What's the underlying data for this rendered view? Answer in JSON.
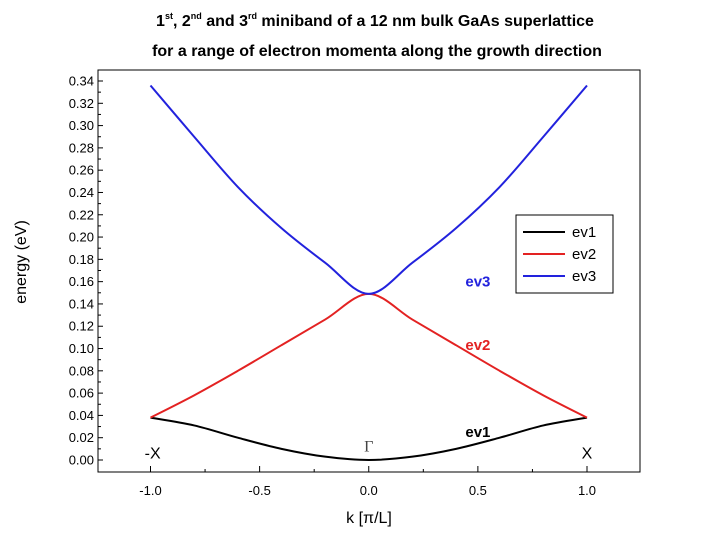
{
  "chart_data": {
    "type": "line",
    "title_line1": {
      "parts": [
        {
          "text": "1",
          "sup": false
        },
        {
          "text": "st",
          "sup": true
        },
        {
          "text": ", 2",
          "sup": false
        },
        {
          "text": "nd",
          "sup": true
        },
        {
          "text": " and 3",
          "sup": false
        },
        {
          "text": "rd",
          "sup": true
        },
        {
          "text": " miniband of a 12 nm bulk GaAs superlattice",
          "sup": false
        }
      ]
    },
    "title_line2": "for a range of electron momenta along the growth direction",
    "xlabel": "k  [π/L]",
    "ylabel": "energy (eV)",
    "xlim": [
      -1.2,
      1.2
    ],
    "ylim": [
      -0.01,
      0.345
    ],
    "x_ticks": [
      -1.0,
      -0.5,
      0.0,
      0.5,
      1.0
    ],
    "x_tick_labels": [
      "-1.0",
      "-0.5",
      "0.0",
      "0.5",
      "1.0"
    ],
    "y_ticks": [
      0.0,
      0.02,
      0.04,
      0.06,
      0.08,
      0.1,
      0.12,
      0.14,
      0.16,
      0.18,
      0.2,
      0.22,
      0.24,
      0.26,
      0.28,
      0.3,
      0.32,
      0.34
    ],
    "y_tick_labels": [
      "0.00",
      "0.02",
      "0.04",
      "0.06",
      "0.08",
      "0.10",
      "0.12",
      "0.14",
      "0.16",
      "0.18",
      "0.20",
      "0.22",
      "0.24",
      "0.26",
      "0.28",
      "0.30",
      "0.32",
      "0.34"
    ],
    "grid": false,
    "legend_position": "right",
    "series": [
      {
        "name": "ev1",
        "color": "#000000",
        "x": [
          -1.0,
          -0.8,
          -0.6,
          -0.4,
          -0.2,
          0.0,
          0.2,
          0.4,
          0.6,
          0.8,
          1.0
        ],
        "y": [
          0.038,
          0.031,
          0.02,
          0.01,
          0.003,
          0.0,
          0.003,
          0.01,
          0.02,
          0.031,
          0.038
        ]
      },
      {
        "name": "ev2",
        "color": "#e32222",
        "x": [
          -1.0,
          -0.8,
          -0.6,
          -0.4,
          -0.2,
          0.0,
          0.2,
          0.4,
          0.6,
          0.8,
          1.0
        ],
        "y": [
          0.038,
          0.058,
          0.08,
          0.103,
          0.126,
          0.149,
          0.126,
          0.103,
          0.08,
          0.058,
          0.038
        ]
      },
      {
        "name": "ev3",
        "color": "#2222dd",
        "x": [
          -1.0,
          -0.8,
          -0.6,
          -0.4,
          -0.2,
          0.0,
          0.2,
          0.4,
          0.6,
          0.8,
          1.0
        ],
        "y": [
          0.336,
          0.29,
          0.245,
          0.208,
          0.177,
          0.149,
          0.177,
          0.208,
          0.245,
          0.29,
          0.336
        ]
      }
    ],
    "annotations": [
      {
        "text": "ev3",
        "x": 0.5,
        "y": 0.16,
        "color": "#2222dd",
        "kind": "curve"
      },
      {
        "text": "ev2",
        "x": 0.5,
        "y": 0.103,
        "color": "#e32222",
        "kind": "curve"
      },
      {
        "text": "ev1",
        "x": 0.5,
        "y": 0.025,
        "color": "#000000",
        "kind": "curve"
      },
      {
        "text": "-X",
        "x": -0.99,
        "y": 0.006,
        "color": "#000000",
        "kind": "point"
      },
      {
        "text": "Γ",
        "x": 0.0,
        "y": 0.012,
        "color": "#444444",
        "kind": "gamma"
      },
      {
        "text": "X",
        "x": 1.0,
        "y": 0.006,
        "color": "#000000",
        "kind": "point"
      }
    ]
  }
}
